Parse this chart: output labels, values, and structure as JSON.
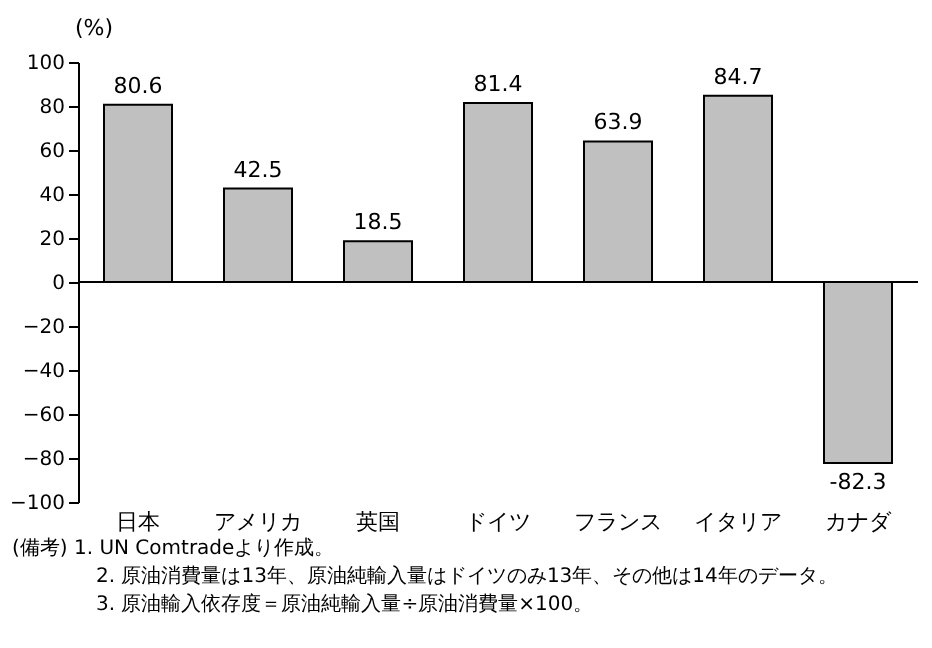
{
  "chart_data": {
    "type": "bar",
    "ylabel": "(%)",
    "categories": [
      "日本",
      "アメリカ",
      "英国",
      "ドイツ",
      "フランス",
      "イタリア",
      "カナダ"
    ],
    "values": [
      80.6,
      42.5,
      18.5,
      81.4,
      63.9,
      84.7,
      -82.3
    ],
    "color": "#c0c0c0",
    "data_labels": true,
    "ylim": [
      -100,
      100
    ],
    "yticks": [
      -100,
      -80,
      -60,
      -40,
      -20,
      0,
      20,
      40,
      60,
      80,
      100
    ],
    "annotations": [
      "(備考)  1.  UN Comtradeより作成。",
      "2.  原油消費量は13年、原油純輸入量はドイツのみ13年、その他は14年のデータ。",
      "3.  原油輸入依存度＝原油純輸入量÷原油消費量×100。"
    ]
  }
}
